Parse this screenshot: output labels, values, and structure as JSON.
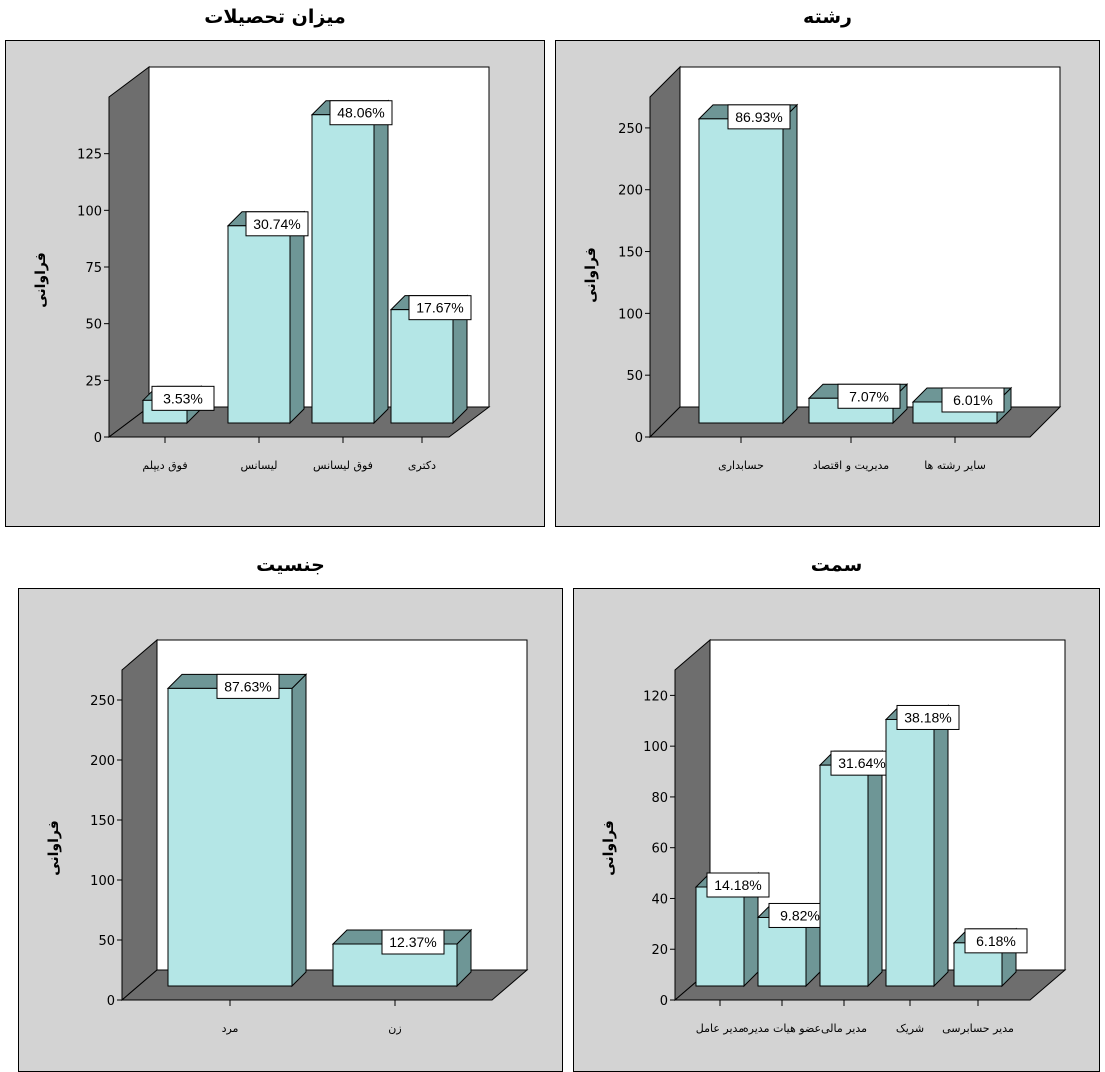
{
  "colors": {
    "bar_front": "#b4e6e6",
    "bar_side": "#6e9696",
    "bar_top": "#6e9696",
    "floor": "#6e6e6e",
    "wall": "#ffffff",
    "left_wall": "#6e6e6e",
    "frame_bg": "#d3d3d3"
  },
  "chart_data": [
    {
      "type": "bar",
      "title": "میزان تحصیلات",
      "ylabel": "فراوانی",
      "ylim": [
        0,
        150
      ],
      "yticks": [
        0,
        25,
        50,
        75,
        100,
        125
      ],
      "categories": [
        "فوق دیپلم",
        "لیسانس",
        "فوق لیسانس",
        "دکتری"
      ],
      "values": [
        10,
        87,
        136,
        50
      ],
      "data_labels": [
        "3.53%",
        "30.74%",
        "48.06%",
        "17.67%"
      ]
    },
    {
      "type": "bar",
      "title": "رشته",
      "ylabel": "فراوانی",
      "ylim": [
        0,
        275
      ],
      "yticks": [
        0,
        50,
        100,
        150,
        200,
        250
      ],
      "categories": [
        "حسابداری",
        "مدیریت و اقتصاد",
        "سایر رشته ها"
      ],
      "values": [
        246,
        20,
        17
      ],
      "data_labels": [
        "86.93%",
        "7.07%",
        "6.01%"
      ]
    },
    {
      "type": "bar",
      "title": "جنسیت",
      "ylabel": "فراوانی",
      "ylim": [
        0,
        275
      ],
      "yticks": [
        0,
        50,
        100,
        150,
        200,
        250
      ],
      "categories": [
        "مرد",
        "زن"
      ],
      "values": [
        248,
        35
      ],
      "data_labels": [
        "87.63%",
        "12.37%"
      ]
    },
    {
      "type": "bar",
      "title": "سمت",
      "ylabel": "فراوانی",
      "ylim": [
        0,
        130
      ],
      "yticks": [
        0,
        20,
        40,
        60,
        80,
        100,
        120
      ],
      "categories": [
        "مدیر عامل",
        "عضو هیات مدیره",
        "مدیر مالی",
        "شریک",
        "مدیر حسابرسی"
      ],
      "values": [
        39,
        27,
        87,
        105,
        17
      ],
      "data_labels": [
        "14.18%",
        "9.82%",
        "31.64%",
        "38.18%",
        "6.18%"
      ]
    }
  ]
}
